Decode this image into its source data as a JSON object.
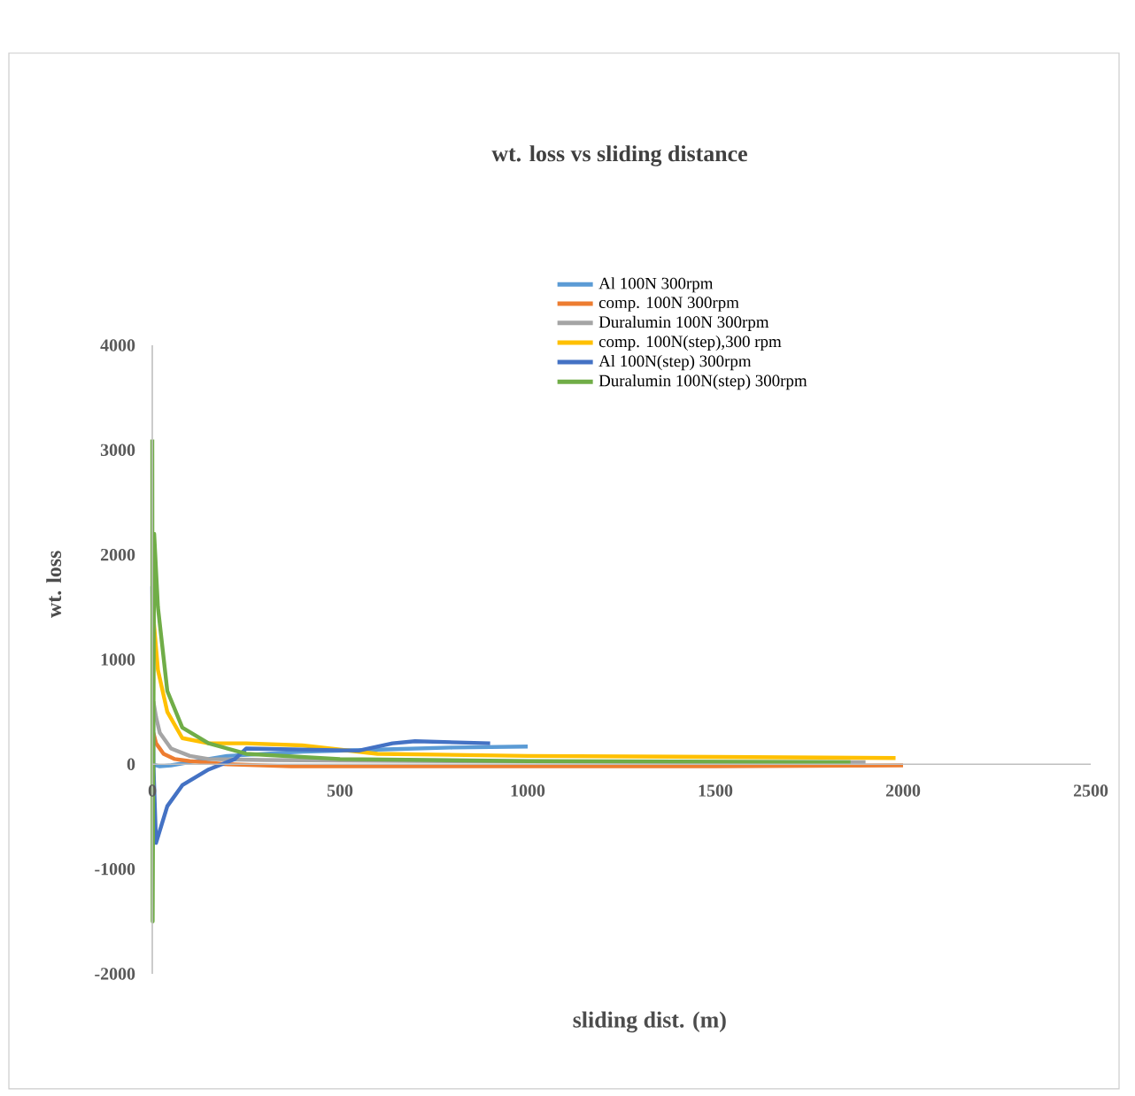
{
  "chart_data": {
    "type": "line",
    "title": "wt. loss vs sliding distance",
    "xlabel": "sliding dist. (m)",
    "ylabel": "wt. loss",
    "xlim": [
      0,
      2500
    ],
    "ylim": [
      -2000,
      4000
    ],
    "xticks": [
      0,
      500,
      1000,
      1500,
      2000,
      2500
    ],
    "yticks": [
      -2000,
      -1000,
      0,
      1000,
      2000,
      3000,
      4000
    ],
    "grid": false,
    "legend": "top right",
    "marker": "none",
    "line_style": "solid",
    "series": [
      {
        "name": "Al 100N 300rpm",
        "color": "#5b9bd5",
        "x": [
          0,
          20,
          50,
          100,
          200,
          400,
          600,
          800,
          1000
        ],
        "values": [
          0,
          -20,
          -10,
          20,
          80,
          120,
          140,
          160,
          170
        ]
      },
      {
        "name": "comp. 100N 300rpm",
        "color": "#ed7d31",
        "x": [
          3,
          10,
          30,
          60,
          100,
          200,
          370,
          800,
          1500,
          2000
        ],
        "values": [
          300,
          200,
          100,
          50,
          30,
          0,
          -20,
          -20,
          -20,
          -10
        ]
      },
      {
        "name": "Duralumin 100N 300rpm",
        "color": "#a5a5a5",
        "x": [
          3,
          10,
          20,
          50,
          100,
          150,
          300,
          800,
          1500,
          1900
        ],
        "values": [
          600,
          450,
          300,
          150,
          80,
          50,
          40,
          30,
          20,
          20
        ]
      },
      {
        "name": "comp. 100N(step),300 rpm",
        "color": "#ffc000",
        "x": [
          3,
          15,
          40,
          80,
          150,
          250,
          400,
          600,
          1000,
          1500,
          1980
        ],
        "values": [
          1400,
          900,
          500,
          250,
          200,
          200,
          180,
          100,
          80,
          70,
          60
        ]
      },
      {
        "name": "Al 100N(step) 300rpm",
        "color": "#4472c4",
        "x": [
          0,
          3,
          10,
          40,
          80,
          150,
          220,
          250,
          550,
          640,
          700,
          900
        ],
        "values": [
          1700,
          0,
          -750,
          -400,
          -200,
          -50,
          50,
          150,
          130,
          200,
          220,
          200
        ]
      },
      {
        "name": "Duralumin 100N(step) 300rpm",
        "color": "#70ad47",
        "x": [
          0,
          1,
          5,
          15,
          40,
          80,
          150,
          250,
          500,
          1000,
          1860
        ],
        "values": [
          3100,
          -1500,
          2200,
          1500,
          700,
          350,
          200,
          100,
          50,
          30,
          20
        ]
      }
    ]
  }
}
